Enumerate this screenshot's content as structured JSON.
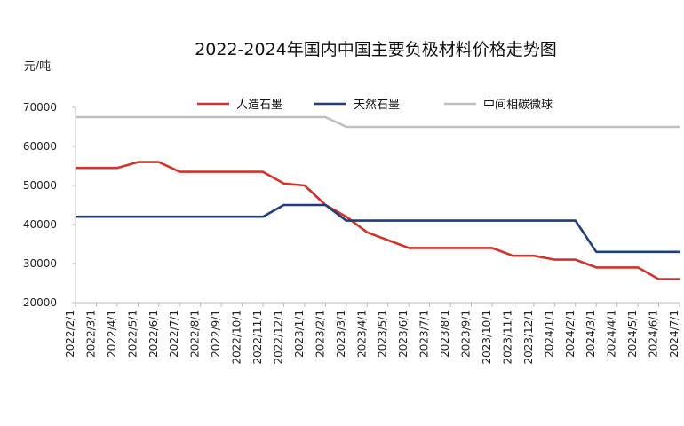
{
  "chart_data": {
    "type": "line",
    "title": "2022-2024年国内中国主要负极材料价格走势图",
    "ylabel": "元/吨",
    "xlabel": "",
    "ylim": [
      20000,
      70000
    ],
    "yticks": [
      "20000",
      "30000",
      "40000",
      "50000",
      "60000",
      "70000"
    ],
    "grid": false,
    "legend_position": "top",
    "categories": [
      "2022/2/1",
      "2022/3/1",
      "2022/4/1",
      "2022/5/1",
      "2022/6/1",
      "2022/7/1",
      "2022/8/1",
      "2022/9/1",
      "2022/10/1",
      "2022/11/1",
      "2022/12/1",
      "2023/1/1",
      "2023/2/1",
      "2023/3/1",
      "2023/4/1",
      "2023/5/1",
      "2023/6/1",
      "2023/7/1",
      "2023/8/1",
      "2023/9/1",
      "2023/10/1",
      "2023/11/1",
      "2023/12/1",
      "2024/1/1",
      "2024/2/1",
      "2024/3/1",
      "2024/4/1",
      "2024/5/1",
      "2024/6/1",
      "2024/7/1"
    ],
    "series": [
      {
        "name": "人造石墨",
        "color": "#d0342c",
        "points": [
          [
            "2022/2/1",
            54500
          ],
          [
            "2022/4/1",
            54500
          ],
          [
            "2022/5/1",
            56000
          ],
          [
            "2022/6/1",
            56000
          ],
          [
            "2022/7/1",
            53500
          ],
          [
            "2022/11/1",
            53500
          ],
          [
            "2022/12/1",
            50500
          ],
          [
            "2023/1/1",
            50000
          ],
          [
            "2023/2/1",
            45000
          ],
          [
            "2023/3/1",
            42000
          ],
          [
            "2023/4/1",
            38000
          ],
          [
            "2023/5/1",
            36000
          ],
          [
            "2023/6/1",
            34000
          ],
          [
            "2023/10/1",
            34000
          ],
          [
            "2023/11/1",
            32000
          ],
          [
            "2023/12/1",
            32000
          ],
          [
            "2024/1/1",
            31000
          ],
          [
            "2024/2/1",
            31000
          ],
          [
            "2024/3/1",
            29000
          ],
          [
            "2024/5/1",
            29000
          ],
          [
            "2024/6/1",
            26000
          ],
          [
            "2024/7/1",
            26000
          ]
        ]
      },
      {
        "name": "天然石墨",
        "color": "#1f3e7c",
        "points": [
          [
            "2022/2/1",
            42000
          ],
          [
            "2022/11/1",
            42000
          ],
          [
            "2022/12/1",
            45000
          ],
          [
            "2023/2/1",
            45000
          ],
          [
            "2023/3/1",
            41000
          ],
          [
            "2024/2/1",
            41000
          ],
          [
            "2024/3/1",
            33000
          ],
          [
            "2024/7/1",
            33000
          ]
        ]
      },
      {
        "name": "中间相碳微球",
        "color": "#bfbfbf",
        "points": [
          [
            "2022/2/1",
            67500
          ],
          [
            "2023/2/1",
            67500
          ],
          [
            "2023/3/1",
            65000
          ],
          [
            "2024/7/1",
            65000
          ]
        ]
      }
    ]
  }
}
